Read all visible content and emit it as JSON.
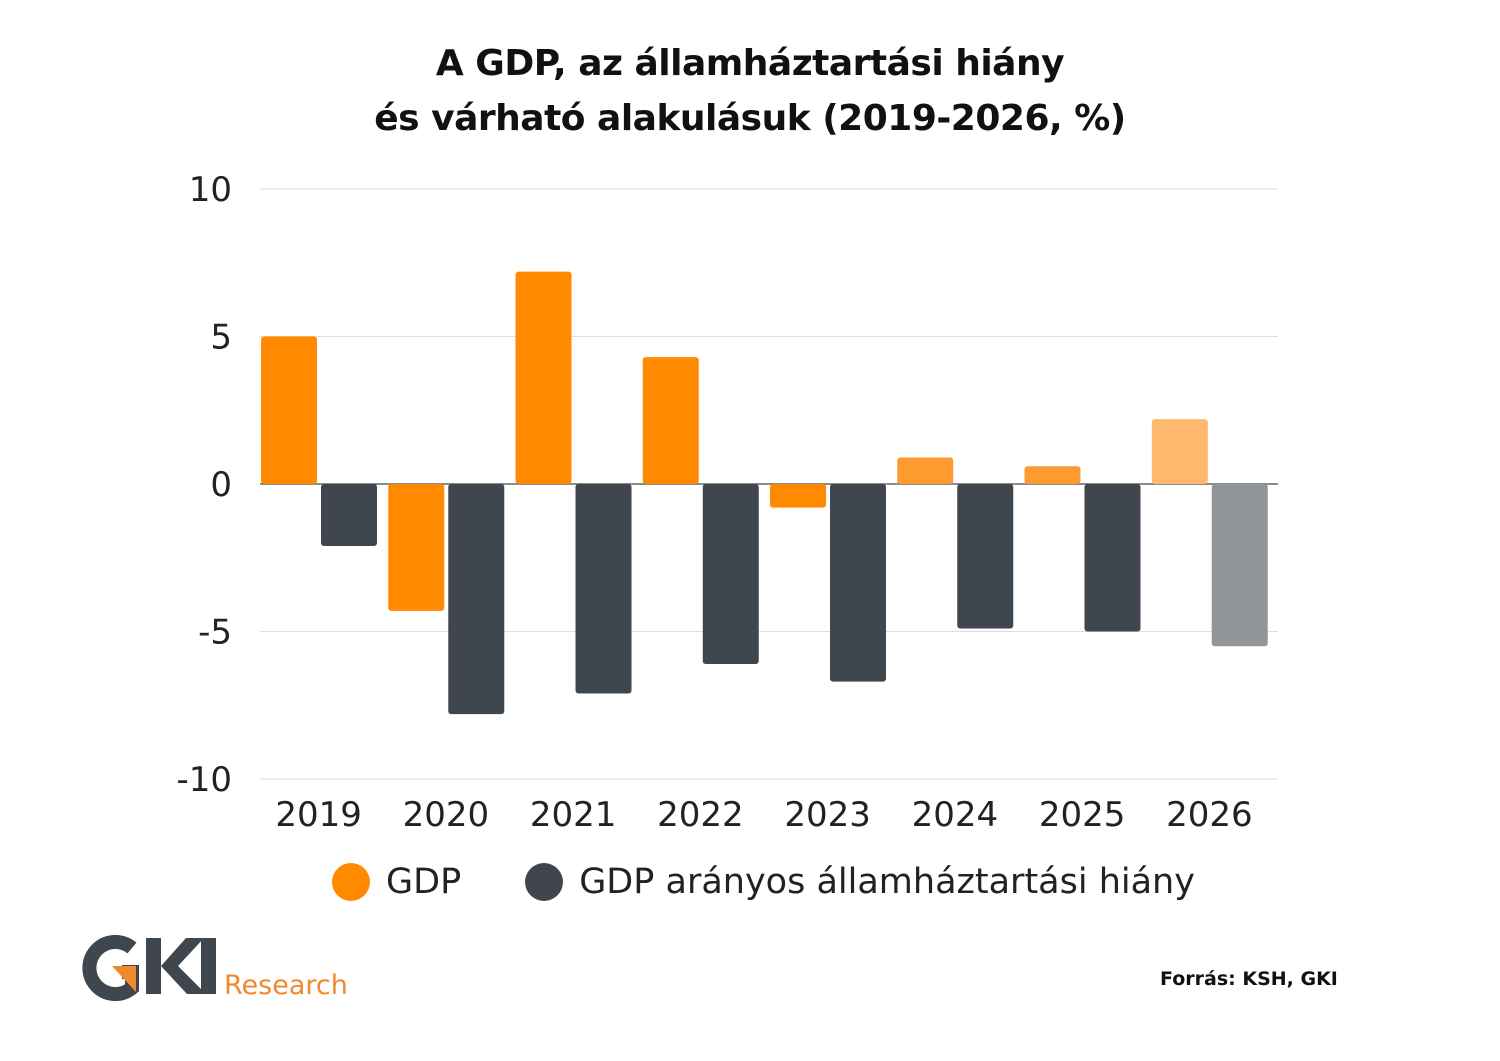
{
  "chart_data": {
    "type": "bar",
    "title_lines": [
      "A GDP, az államháztartási hiány",
      "és várható alakulásuk (2019-2026, %)"
    ],
    "categories": [
      "2019",
      "2020",
      "2021",
      "2022",
      "2023",
      "2024",
      "2025",
      "2026"
    ],
    "series": [
      {
        "name": "GDP",
        "values": [
          5.0,
          -4.3,
          7.2,
          4.3,
          -0.8,
          0.9,
          0.6,
          2.2
        ],
        "color": "#ff8a00",
        "point_colors": [
          "#ff8a00",
          "#ff8a00",
          "#ff8a00",
          "#ff8a00",
          "#ff8a00",
          "#fd9a30",
          "#fd9a30",
          "#feb96f"
        ]
      },
      {
        "name": "GDP arányos államháztartási hiány",
        "values": [
          -2.1,
          -7.8,
          -7.1,
          -6.1,
          -6.7,
          -4.9,
          -5.0,
          -5.5
        ],
        "color": "#40464d",
        "point_colors": [
          "#40464d",
          "#40464d",
          "#40464d",
          "#40464d",
          "#40464d",
          "#40464d",
          "#40464d",
          "#939699"
        ]
      }
    ],
    "ylim": [
      -10,
      10
    ],
    "yticks": [
      "10",
      "5",
      "0",
      "-5",
      "-10"
    ],
    "grid": true,
    "legend_placement": "bottom"
  },
  "source": "Forrás: KSH, GKI",
  "logo": {
    "text": "GKI",
    "subtext": "Research",
    "colors": {
      "dark": "#40464d",
      "orange": "#ef8a2d"
    }
  }
}
